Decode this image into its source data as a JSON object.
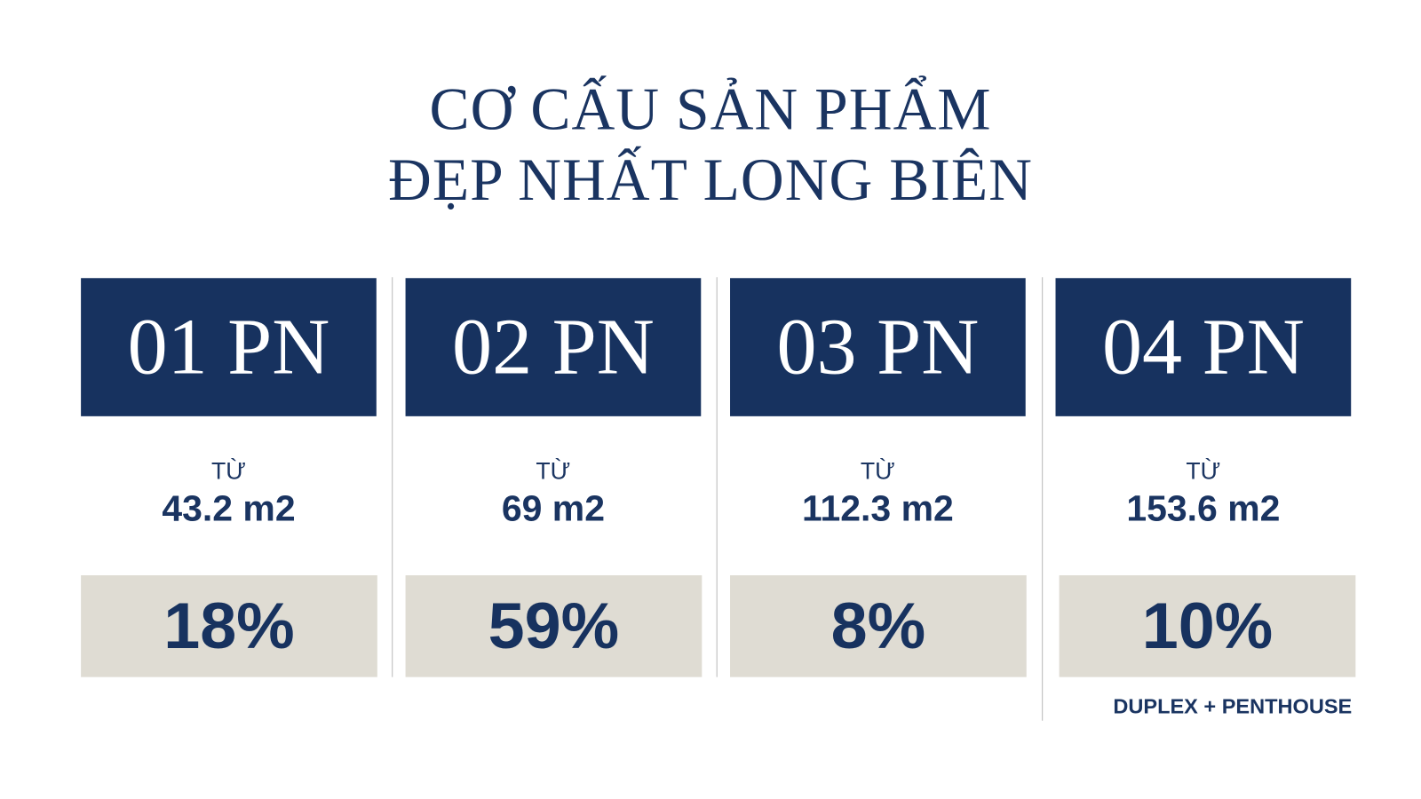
{
  "title": [
    "CƠ CẤU SẢN PHẨM",
    "ĐẸP NHẤT LONG BIÊN"
  ],
  "cards": [
    {
      "label": "01 PN",
      "prefix": "TỪ",
      "area": "43.2 m2",
      "share": "18%"
    },
    {
      "label": "02 PN",
      "prefix": "TỪ",
      "area": "69 m2",
      "share": "59%"
    },
    {
      "label": "03 PN",
      "prefix": "TỪ",
      "area": "112.3 m2",
      "share": "8%"
    },
    {
      "label": "04 PN",
      "prefix": "TỪ",
      "area": "153.6 m2",
      "share": "10%",
      "note": "DUPLEX + PENTHOUSE"
    }
  ]
}
